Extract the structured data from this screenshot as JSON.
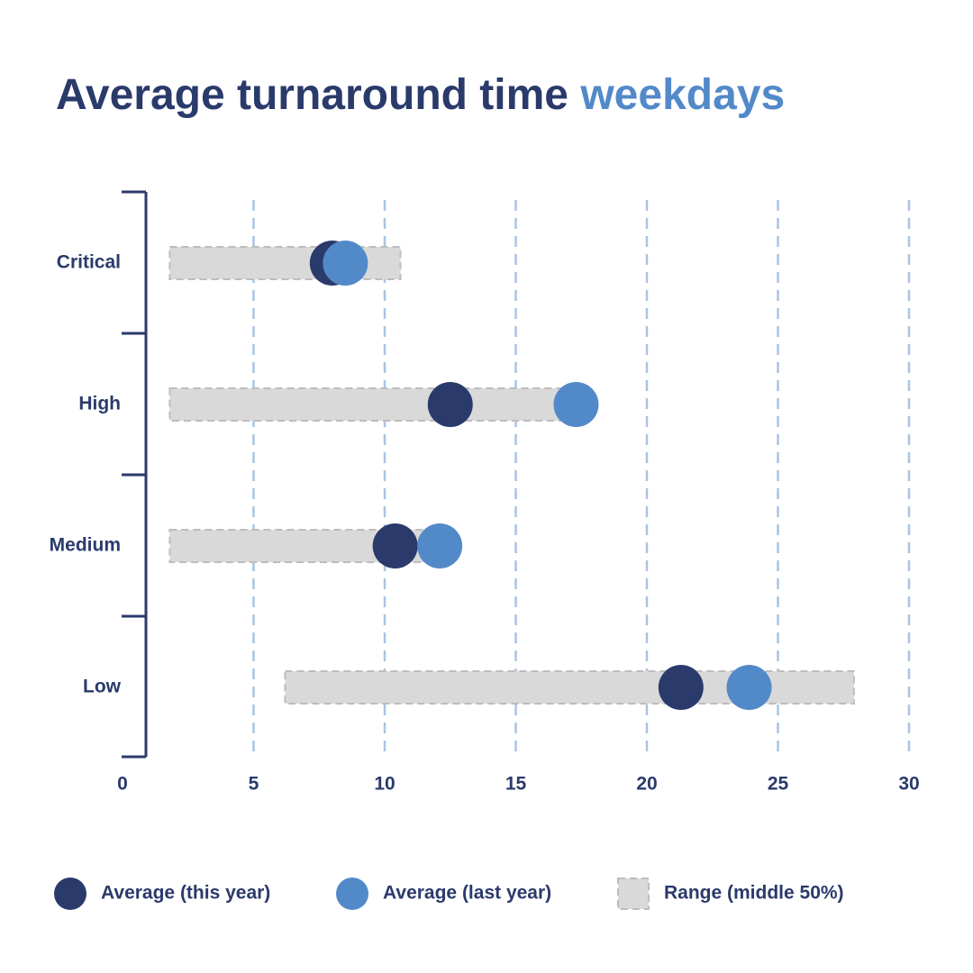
{
  "chart_data": {
    "type": "dot",
    "title": "Average turnaround time",
    "title_highlight": "weekdays",
    "categories": [
      "Critical",
      "High",
      "Medium",
      "Low"
    ],
    "ranges": {
      "name": "Range (middle 50%)",
      "color": "#d9d9d9",
      "low": [
        1.8,
        1.8,
        1.8,
        6.2
      ],
      "high": [
        10.6,
        17.0,
        12.0,
        27.9
      ]
    },
    "series": [
      {
        "name": "Average (this year)",
        "color": "#2a3a6b",
        "values": [
          8.0,
          12.5,
          10.4,
          21.3
        ]
      },
      {
        "name": "Average (last year)",
        "color": "#5289c9",
        "values": [
          8.5,
          17.3,
          12.1,
          23.9
        ]
      }
    ],
    "xlim": [
      0,
      30
    ],
    "xticks": [
      0,
      5,
      10,
      15,
      20,
      25,
      30
    ],
    "grid": true,
    "grid_color": "#a9c4e2"
  }
}
